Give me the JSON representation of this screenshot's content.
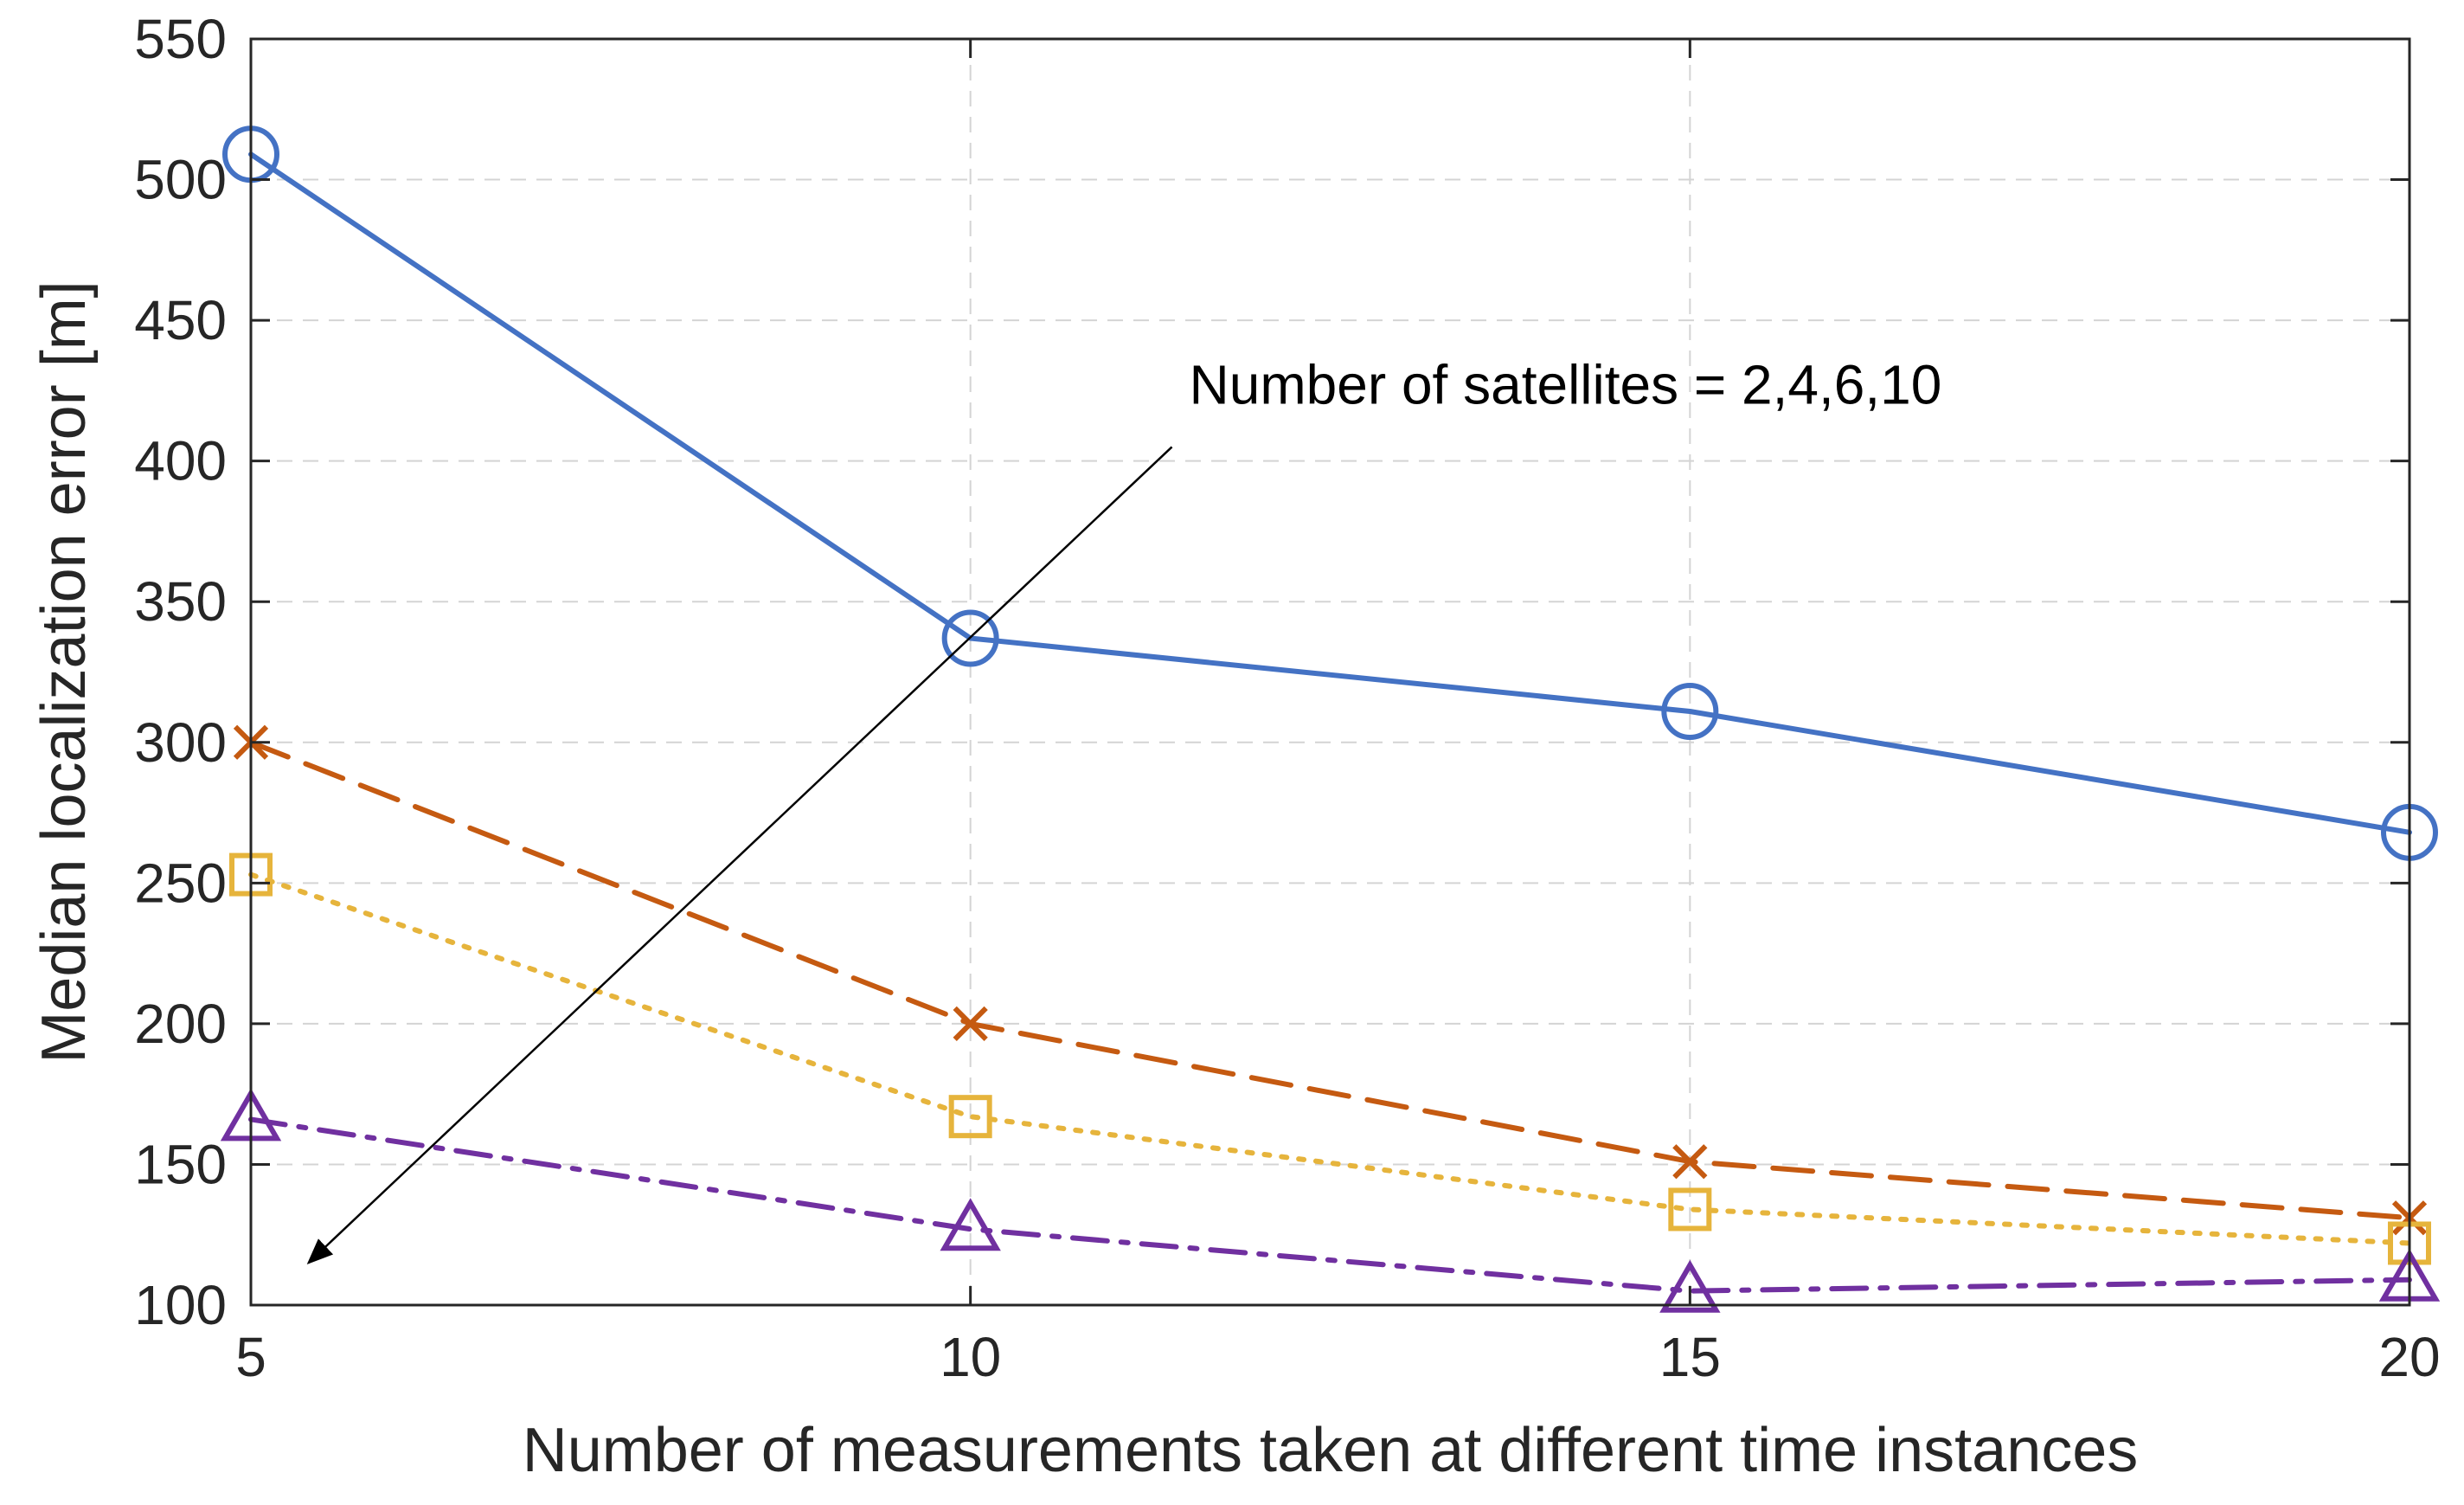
{
  "chart_data": {
    "type": "line",
    "title": "",
    "xlabel": "Number of measurements taken at different time instances",
    "ylabel": "Median localization error [m]",
    "xlim": [
      5,
      20
    ],
    "ylim": [
      100,
      550
    ],
    "x": [
      5,
      10,
      15,
      20
    ],
    "xticks": [
      5,
      10,
      15,
      20
    ],
    "yticks": [
      100,
      150,
      200,
      250,
      300,
      350,
      400,
      450,
      500,
      550
    ],
    "grid": true,
    "legend": "none",
    "series": [
      {
        "name": "2 satellites",
        "marker": "circle",
        "line": "solid",
        "color": "#4472C4",
        "values": [
          509,
          337,
          311,
          268
        ]
      },
      {
        "name": "4 satellites",
        "marker": "x",
        "line": "dashed",
        "color": "#C55A11",
        "values": [
          300,
          200,
          151,
          131
        ]
      },
      {
        "name": "6 satellites",
        "marker": "square",
        "line": "dotted",
        "color": "#E6B43C",
        "values": [
          253,
          167,
          134,
          122
        ]
      },
      {
        "name": "10 satellites",
        "marker": "triangle",
        "line": "dashdot",
        "color": "#7030A0",
        "values": [
          166,
          127,
          105,
          109
        ]
      }
    ],
    "annotation": {
      "text": "Number of satellites = 2,4,6,10",
      "arrow_from": [
        11.4,
        405
      ],
      "arrow_to": [
        5.4,
        115
      ]
    }
  }
}
